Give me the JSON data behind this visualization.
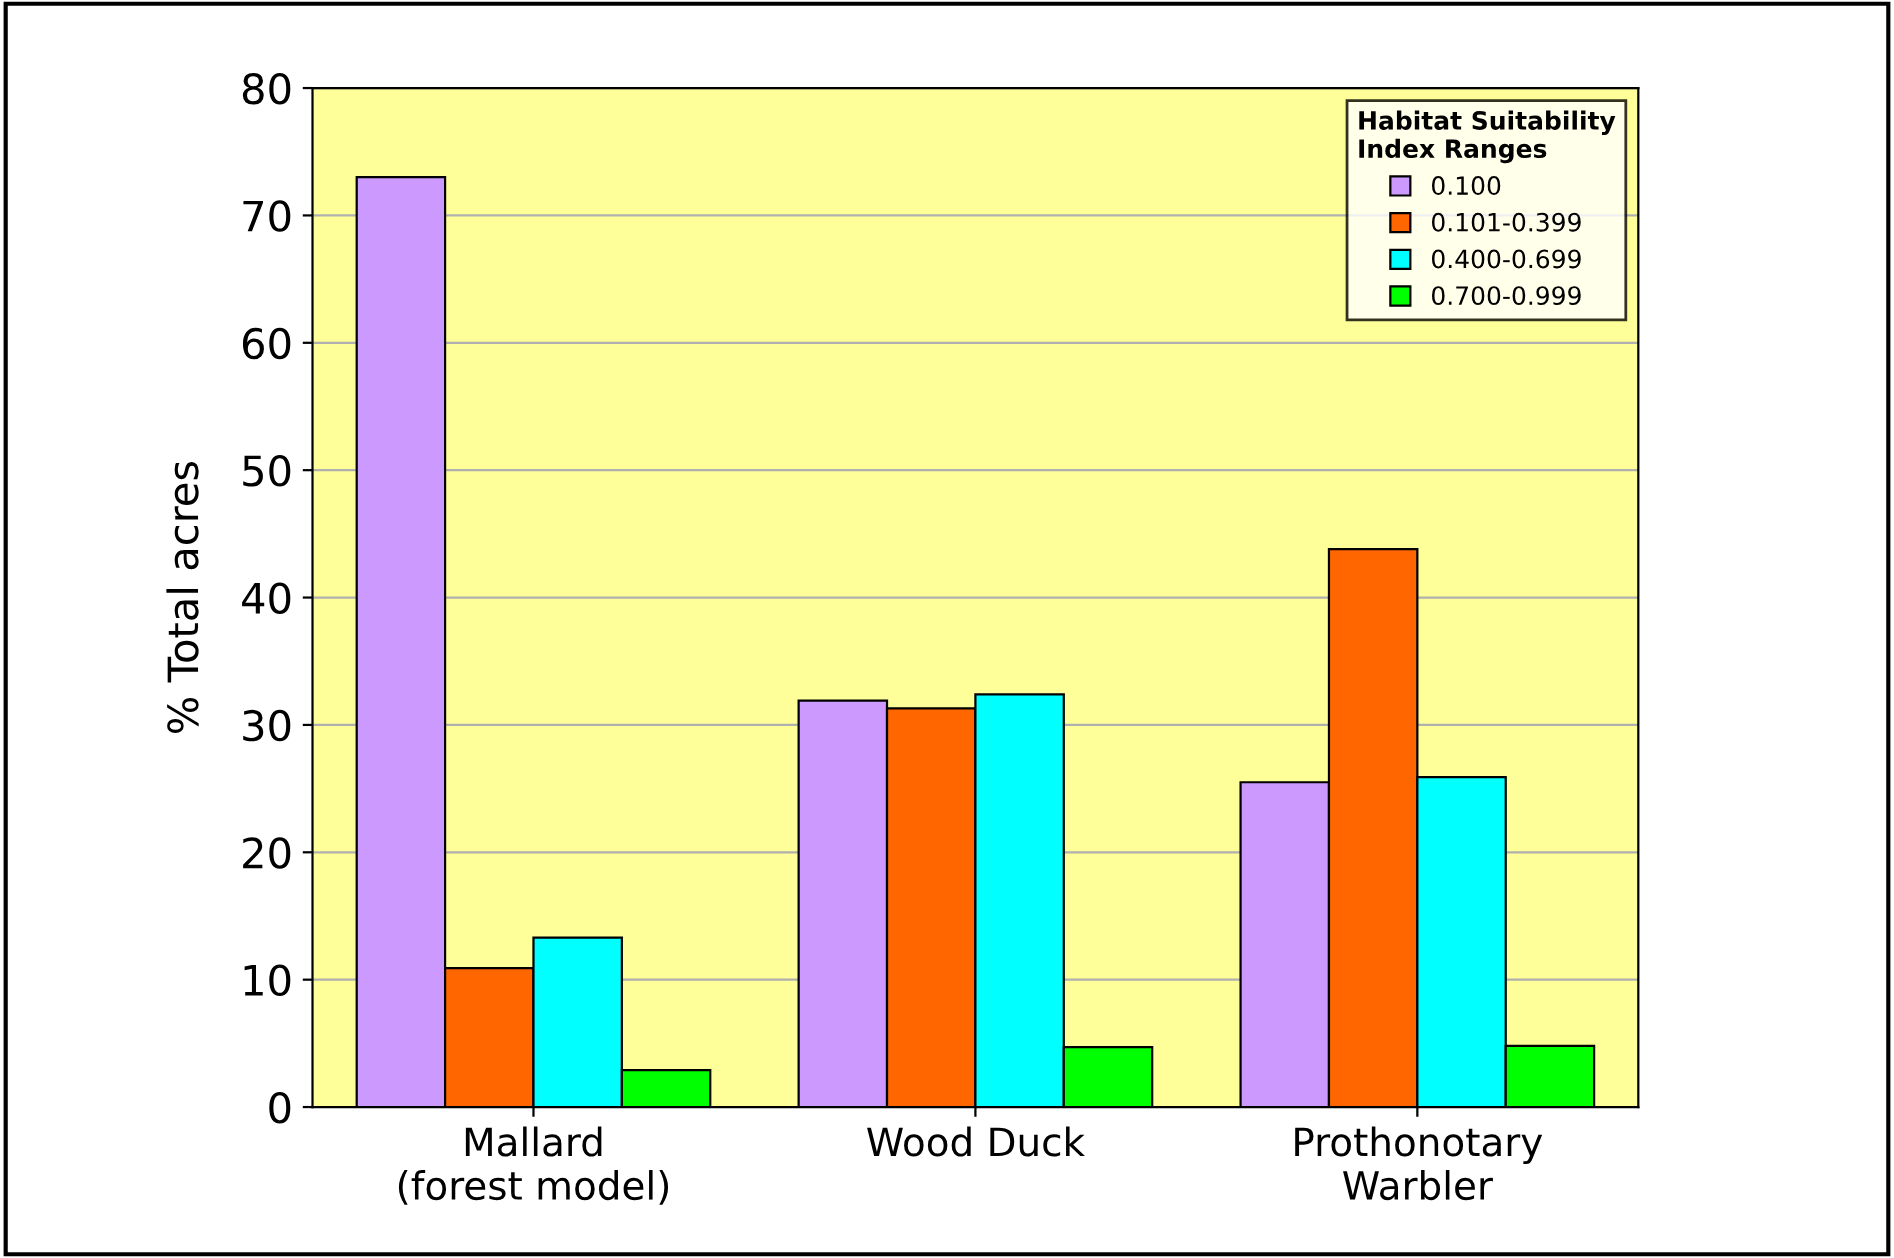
{
  "chart_data": {
    "type": "bar",
    "ylabel": "% Total acres",
    "legend_title": "Habitat Suitability\nIndex Ranges",
    "categories": [
      "Mallard\n(forest model)",
      "Wood Duck",
      "Prothonotary\nWarbler"
    ],
    "series": [
      {
        "name": "0.100",
        "color": "#cc99ff",
        "values": [
          73,
          31.9,
          25.5
        ]
      },
      {
        "name": "0.101-0.399",
        "color": "#ff6600",
        "values": [
          10.9,
          31.3,
          43.8
        ]
      },
      {
        "name": "0.400-0.699",
        "color": "#00ffff",
        "values": [
          13.3,
          32.4,
          25.9
        ]
      },
      {
        "name": "0.700-0.999",
        "color": "#00ff00",
        "values": [
          2.9,
          4.7,
          4.8
        ]
      }
    ],
    "ylim": [
      0,
      80
    ],
    "yticks": [
      0,
      10,
      20,
      30,
      40,
      50,
      60,
      70,
      80
    ],
    "grid": "y",
    "legend": "top right"
  }
}
